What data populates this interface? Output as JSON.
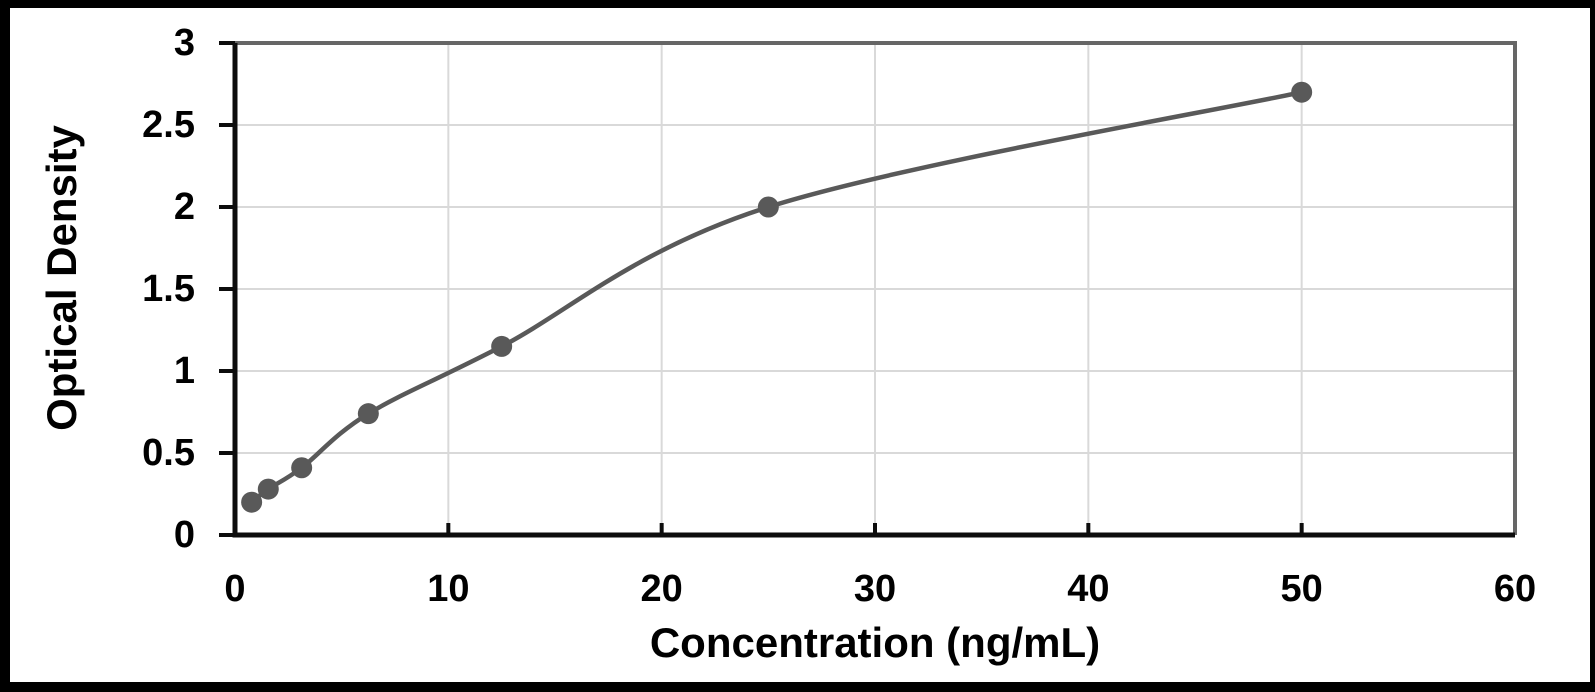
{
  "chart_data": {
    "type": "scatter",
    "title": "",
    "xlabel": "Concentration (ng/mL)",
    "ylabel": "Optical Density",
    "x": [
      0.78,
      1.56,
      3.125,
      6.25,
      12.5,
      25,
      50
    ],
    "y": [
      0.2,
      0.28,
      0.41,
      0.74,
      1.15,
      2.0,
      2.7
    ],
    "xlim": [
      0,
      60
    ],
    "ylim": [
      0,
      3
    ],
    "x_ticks": [
      0,
      10,
      20,
      30,
      40,
      50,
      60
    ],
    "y_ticks": [
      0,
      0.5,
      1,
      1.5,
      2,
      2.5,
      3
    ],
    "grid": true,
    "legend_position": "none",
    "trendline": "smooth fitted curve through points, from first to last point",
    "colors": {
      "marker": "#595959",
      "curve": "#595959",
      "grid": "#d9d9d9",
      "axis": "#0d0d0d",
      "plot_border": "#666666",
      "tick_text": "#000000",
      "title_text": "#000000",
      "figure_frame": "#000000",
      "background": "#ffffff"
    }
  }
}
